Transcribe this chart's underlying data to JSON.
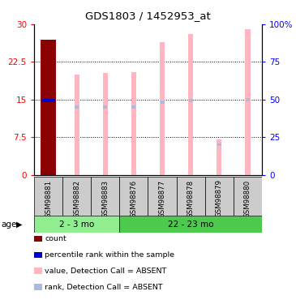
{
  "title": "GDS1803 / 1452953_at",
  "samples": [
    "GSM98881",
    "GSM98882",
    "GSM98883",
    "GSM98876",
    "GSM98877",
    "GSM98878",
    "GSM98879",
    "GSM98880"
  ],
  "groups": [
    {
      "label": "2 - 3 mo",
      "count": 3
    },
    {
      "label": "22 - 23 mo",
      "count": 5
    }
  ],
  "ylim_left": [
    0,
    30
  ],
  "ylim_right": [
    0,
    100
  ],
  "yticks_left": [
    0,
    7.5,
    15,
    22.5,
    30
  ],
  "yticks_right": [
    0,
    25,
    50,
    75,
    100
  ],
  "ytick_labels_right": [
    "0",
    "25",
    "50",
    "75",
    "100%"
  ],
  "bar_type": [
    "count",
    "absent",
    "absent",
    "absent",
    "absent",
    "absent",
    "absent",
    "absent"
  ],
  "values": [
    27.0,
    20.0,
    20.3,
    20.5,
    26.5,
    28.0,
    7.0,
    29.0
  ],
  "ranks": [
    14.8,
    13.5,
    13.5,
    13.5,
    14.5,
    14.8,
    6.0,
    15.0
  ],
  "bar_color_count": "#8B0000",
  "bar_color_absent_value": "#FFB6C1",
  "bar_color_absent_rank": "#AABBDD",
  "bar_color_rank_count": "#0000CC",
  "group_color_1": "#90EE90",
  "group_color_2": "#4DC94D",
  "legend_items": [
    {
      "label": "count",
      "color": "#8B0000"
    },
    {
      "label": "percentile rank within the sample",
      "color": "#0000CC"
    },
    {
      "label": "value, Detection Call = ABSENT",
      "color": "#FFB6C1"
    },
    {
      "label": "rank, Detection Call = ABSENT",
      "color": "#AABBDD"
    }
  ]
}
